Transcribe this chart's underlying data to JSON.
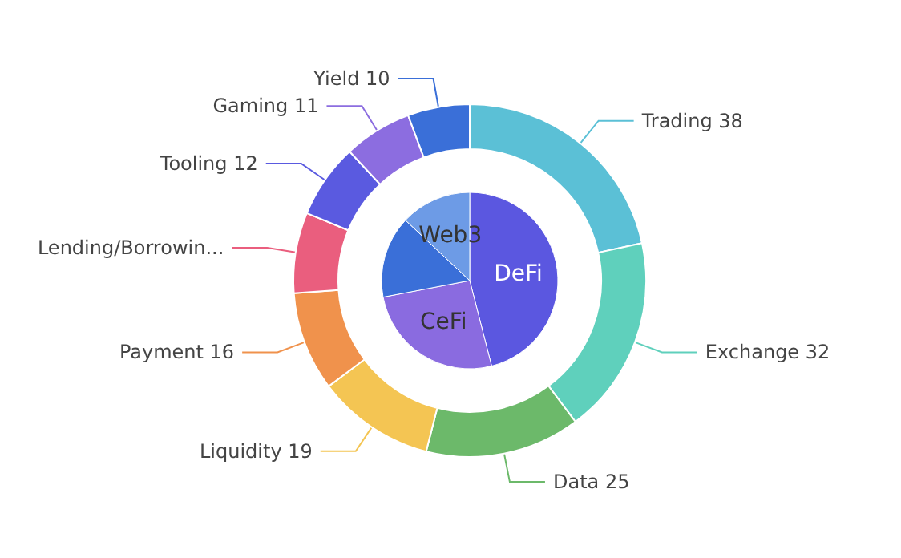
{
  "chart_data": [
    {
      "type": "donut",
      "categories": [
        "Trading",
        "Exchange",
        "Data",
        "Liquidity",
        "Payment",
        "Lending/Borrowin...",
        "Tooling",
        "Gaming",
        "Yield"
      ],
      "values": [
        38,
        32,
        25,
        19,
        16,
        13,
        12,
        11,
        10
      ],
      "value_labels": [
        "38",
        "32",
        "25",
        "19",
        "16",
        null,
        "12",
        "11",
        "10"
      ],
      "colors": [
        "#5bc0d6",
        "#5fd0bc",
        "#6cb96a",
        "#f4c553",
        "#f0924c",
        "#ea5e7e",
        "#5a5ae0",
        "#8c6de0",
        "#3a6fd8"
      ]
    },
    {
      "type": "pie",
      "categories": [
        "DeFi",
        "CeFi",
        null,
        "Web3"
      ],
      "values": [
        46,
        26,
        15,
        13
      ],
      "colors": [
        "#5b57e0",
        "#8a6be0",
        "#3a6fd8",
        "#6d9be6"
      ]
    }
  ]
}
